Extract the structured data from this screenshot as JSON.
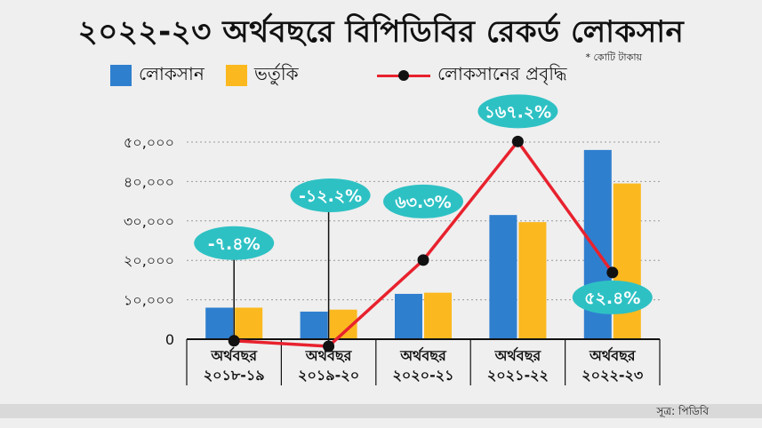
{
  "chart_data": {
    "type": "bar",
    "title": "২০২২-২৩ অর্থবছরে বিপিডিবির রেকর্ড লোকসান",
    "unit_note": "* কোটি টাকায়",
    "source": "সূত্র: পিডিবি",
    "categories": [
      [
        "অর্থবছর",
        "২০১৮-১৯"
      ],
      [
        "অর্থবছর",
        "২০১৯-২০"
      ],
      [
        "অর্থবছর",
        "২০২০-২১"
      ],
      [
        "অর্থবছর",
        "২০২১-২২"
      ],
      [
        "অর্থবছর",
        "২০২২-২৩"
      ]
    ],
    "series": [
      {
        "name": "লোকসান",
        "color": "#2f7fcf",
        "values": [
          8000,
          7000,
          11500,
          31500,
          48000
        ]
      },
      {
        "name": "ভর্তুকি",
        "color": "#fbb91f",
        "values": [
          8000,
          7500,
          11800,
          29700,
          39500
        ]
      }
    ],
    "growth_series": {
      "name": "লোকসানের প্রবৃদ্ধি",
      "line_color": "#e8222e",
      "point_color": "#111111",
      "values": [
        -7.4,
        -12.2,
        63.3,
        167.2,
        52.4
      ],
      "labels": [
        "-৭.৪%",
        "-১২.২%",
        "৬৩.৩%",
        "১৬৭.২%",
        "৫২.৪%"
      ],
      "bubble_color": "#2ec1c4"
    },
    "y_ticks": [
      0,
      10000,
      20000,
      30000,
      40000,
      50000
    ],
    "y_tick_labels": [
      "0",
      "১০,০০০",
      "২০,০০০",
      "৩০,০০০",
      "৪০,০০০",
      "৫০,০০০"
    ],
    "ylim": [
      0,
      50000
    ],
    "growth_range": [
      -20,
      190
    ]
  }
}
